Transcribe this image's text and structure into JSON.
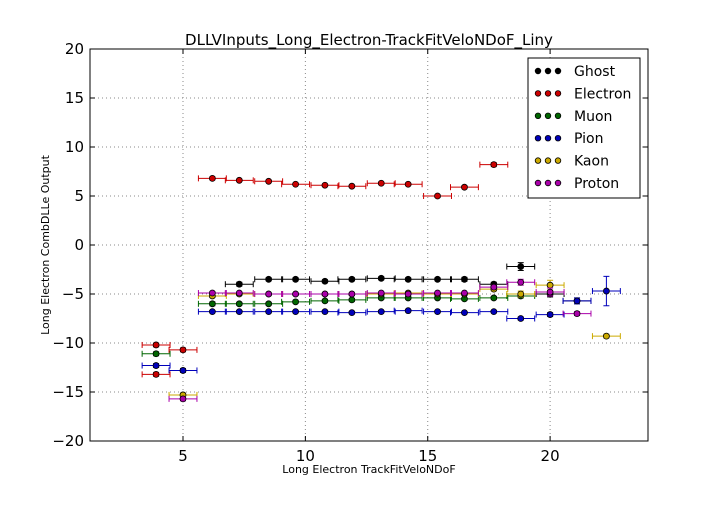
{
  "chart_data": {
    "type": "scatter",
    "title": "DLLVInputs_Long_Electron-TrackFitVeloNDoF_Liny",
    "xlabel": "Long Electron TrackFitVeloNDoF",
    "ylabel": "Long Electron CombDLLe Output",
    "xlim": [
      1.2,
      24
    ],
    "ylim": [
      -20,
      20
    ],
    "xticks": [
      5,
      10,
      15,
      20
    ],
    "yticks": [
      -20,
      -15,
      -10,
      -5,
      0,
      5,
      10,
      15,
      20
    ],
    "grid": true,
    "legend_position": "top-right",
    "series": [
      {
        "name": "Ghost",
        "color": "#000000",
        "points": [
          [
            7.3,
            -4.0
          ],
          [
            8.5,
            -3.5
          ],
          [
            9.6,
            -3.5
          ],
          [
            10.8,
            -3.7
          ],
          [
            11.9,
            -3.5
          ],
          [
            13.1,
            -3.4
          ],
          [
            14.2,
            -3.5
          ],
          [
            15.4,
            -3.5
          ],
          [
            16.5,
            -3.5
          ],
          [
            17.7,
            -4.0
          ],
          [
            18.8,
            -2.2
          ],
          [
            20.0,
            -5.0
          ],
          [
            21.1,
            -5.7
          ]
        ],
        "yerr": [
          0.2,
          0.15,
          0.15,
          0.15,
          0.15,
          0.15,
          0.15,
          0.15,
          0.2,
          0.2,
          0.4,
          0.3,
          0.3
        ]
      },
      {
        "name": "Electron",
        "color": "#cc0000",
        "points": [
          [
            3.9,
            -10.2
          ],
          [
            3.9,
            -13.2
          ],
          [
            5.0,
            -10.7
          ],
          [
            6.2,
            6.8
          ],
          [
            7.3,
            6.6
          ],
          [
            8.5,
            6.5
          ],
          [
            9.6,
            6.2
          ],
          [
            10.8,
            6.1
          ],
          [
            11.9,
            6.0
          ],
          [
            13.1,
            6.3
          ],
          [
            14.2,
            6.2
          ],
          [
            15.4,
            5.0
          ],
          [
            16.5,
            5.9
          ],
          [
            17.7,
            8.2
          ]
        ],
        "yerr": [
          0.2,
          0.2,
          0.2,
          0.15,
          0.1,
          0.1,
          0.1,
          0.1,
          0.1,
          0.1,
          0.1,
          0.15,
          0.15,
          0.2
        ]
      },
      {
        "name": "Muon",
        "color": "#006600",
        "points": [
          [
            3.9,
            -11.1
          ],
          [
            6.2,
            -6.0
          ],
          [
            7.3,
            -6.0
          ],
          [
            8.5,
            -6.0
          ],
          [
            9.6,
            -5.8
          ],
          [
            10.8,
            -5.7
          ],
          [
            11.9,
            -5.6
          ],
          [
            13.1,
            -5.4
          ],
          [
            14.2,
            -5.4
          ],
          [
            15.4,
            -5.4
          ],
          [
            16.5,
            -5.5
          ],
          [
            17.7,
            -5.4
          ],
          [
            18.8,
            -5.2
          ]
        ],
        "yerr": [
          0.2,
          0.2,
          0.15,
          0.15,
          0.15,
          0.15,
          0.15,
          0.15,
          0.15,
          0.15,
          0.15,
          0.15,
          0.2
        ]
      },
      {
        "name": "Pion",
        "color": "#0000bb",
        "points": [
          [
            3.9,
            -12.3
          ],
          [
            5.0,
            -12.8
          ],
          [
            6.2,
            -6.8
          ],
          [
            7.3,
            -6.8
          ],
          [
            8.5,
            -6.8
          ],
          [
            9.6,
            -6.8
          ],
          [
            10.8,
            -6.8
          ],
          [
            11.9,
            -6.9
          ],
          [
            13.1,
            -6.8
          ],
          [
            14.2,
            -6.7
          ],
          [
            15.4,
            -6.8
          ],
          [
            16.5,
            -6.9
          ],
          [
            17.7,
            -6.8
          ],
          [
            18.8,
            -7.5
          ],
          [
            20.0,
            -7.1
          ],
          [
            21.1,
            -5.7
          ],
          [
            22.3,
            -4.7
          ]
        ],
        "yerr": [
          0.2,
          0.2,
          0.1,
          0.1,
          0.1,
          0.1,
          0.1,
          0.1,
          0.1,
          0.1,
          0.1,
          0.1,
          0.1,
          0.15,
          0.2,
          0.3,
          1.5
        ]
      },
      {
        "name": "Kaon",
        "color": "#ccaa00",
        "points": [
          [
            5.0,
            -15.3
          ],
          [
            6.2,
            -5.2
          ],
          [
            7.3,
            -5.0
          ],
          [
            8.5,
            -5.0
          ],
          [
            9.6,
            -5.0
          ],
          [
            10.8,
            -5.0
          ],
          [
            11.9,
            -5.0
          ],
          [
            13.1,
            -5.0
          ],
          [
            14.2,
            -4.9
          ],
          [
            15.4,
            -5.0
          ],
          [
            16.5,
            -5.0
          ],
          [
            17.7,
            -4.5
          ],
          [
            18.8,
            -5.0
          ],
          [
            20.0,
            -4.1
          ],
          [
            22.3,
            -9.3
          ]
        ],
        "yerr": [
          0.2,
          0.15,
          0.1,
          0.1,
          0.1,
          0.1,
          0.1,
          0.1,
          0.1,
          0.1,
          0.1,
          0.2,
          0.3,
          0.5,
          0.2
        ]
      },
      {
        "name": "Proton",
        "color": "#aa00aa",
        "points": [
          [
            5.0,
            -15.7
          ],
          [
            6.2,
            -4.9
          ],
          [
            7.3,
            -4.9
          ],
          [
            8.5,
            -5.0
          ],
          [
            9.6,
            -5.0
          ],
          [
            10.8,
            -5.0
          ],
          [
            11.9,
            -5.0
          ],
          [
            13.1,
            -4.9
          ],
          [
            14.2,
            -5.0
          ],
          [
            15.4,
            -4.9
          ],
          [
            16.5,
            -4.9
          ],
          [
            17.7,
            -4.3
          ],
          [
            18.8,
            -3.8
          ],
          [
            20.0,
            -4.8
          ],
          [
            21.1,
            -7.0
          ]
        ],
        "yerr": [
          0.2,
          0.15,
          0.1,
          0.1,
          0.1,
          0.1,
          0.1,
          0.1,
          0.1,
          0.1,
          0.1,
          0.2,
          0.3,
          0.4,
          0.2
        ]
      }
    ]
  }
}
